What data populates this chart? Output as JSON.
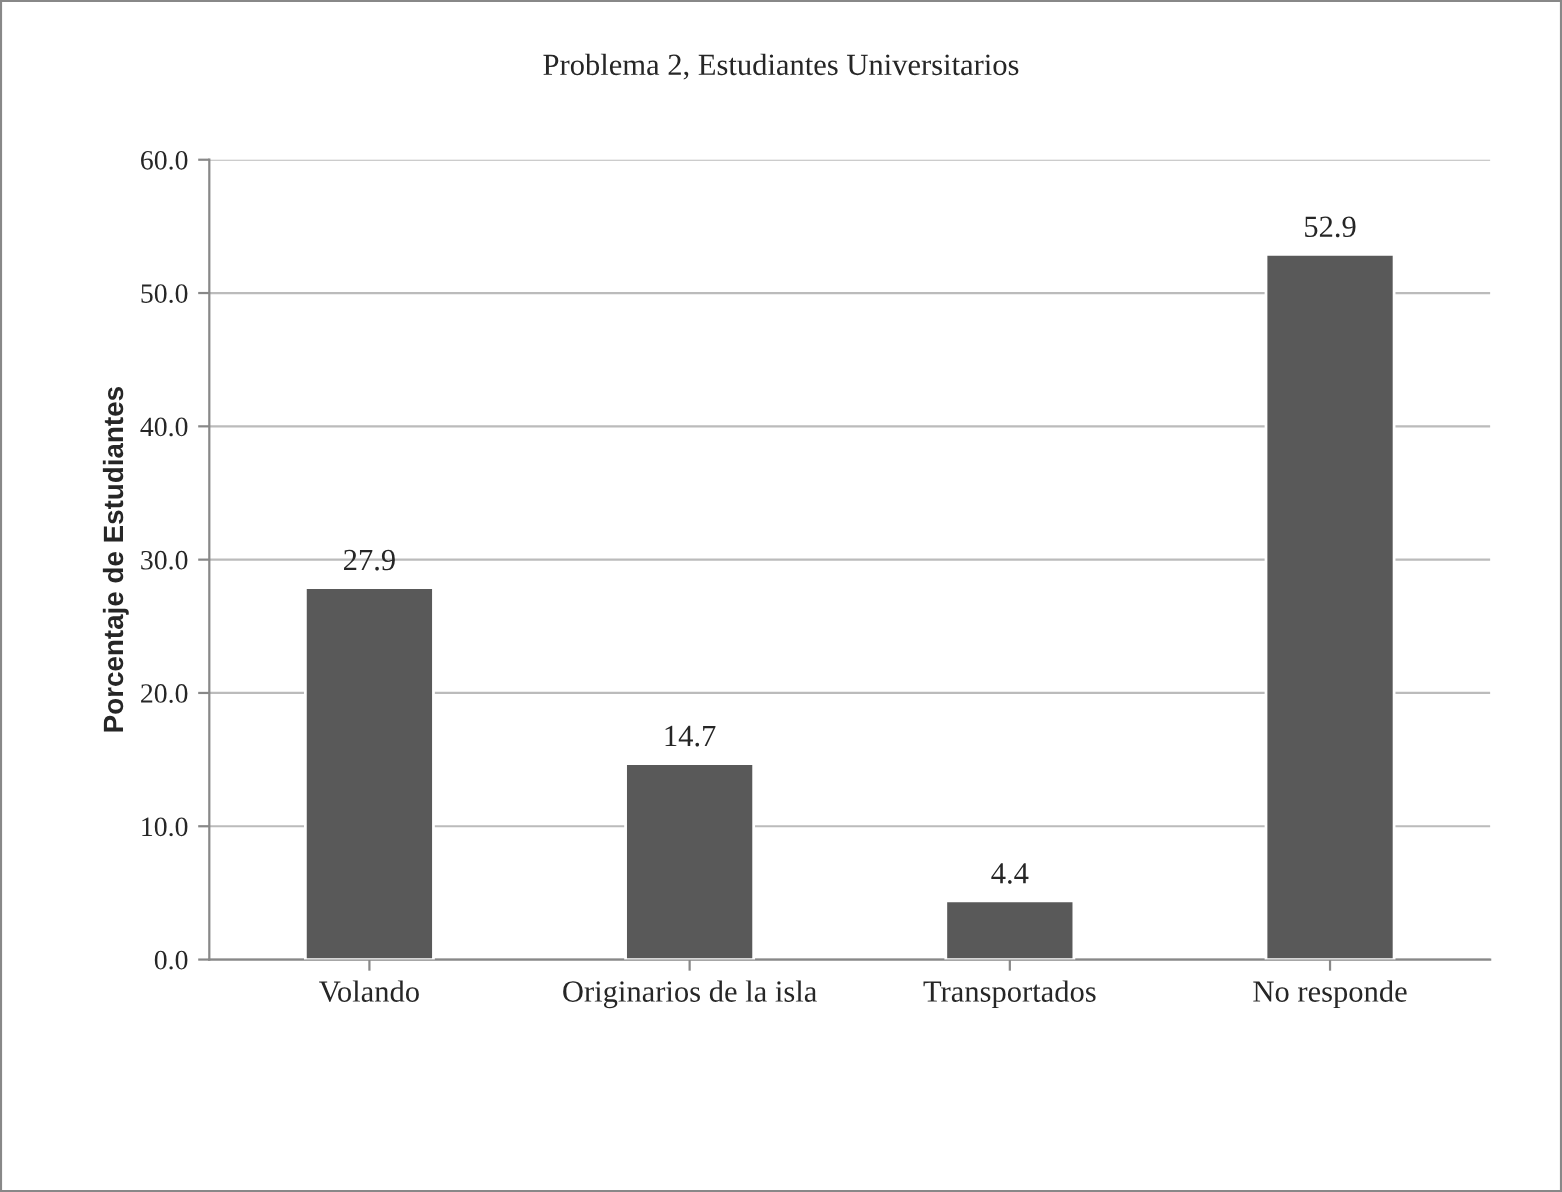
{
  "chart_data": {
    "type": "bar",
    "title": "Problema 2, Estudiantes Universitarios",
    "ylabel": "Porcentaje de Estudiantes",
    "categories": [
      "Volando",
      "Originarios de la isla",
      "Transportados",
      "No responde"
    ],
    "values": [
      27.9,
      14.7,
      4.4,
      52.9
    ],
    "color": "#595959",
    "data_labels": true,
    "ylim": [
      0,
      60
    ],
    "yticks": [
      {
        "value": 0,
        "label": "0.0"
      },
      {
        "value": 10,
        "label": "10.0"
      },
      {
        "value": 20,
        "label": "20.0"
      },
      {
        "value": 30,
        "label": "30.0"
      },
      {
        "value": 40,
        "label": "40.0"
      },
      {
        "value": 50,
        "label": "50.0"
      },
      {
        "value": 60,
        "label": "60.0"
      }
    ],
    "grid": "y",
    "legend": false
  }
}
